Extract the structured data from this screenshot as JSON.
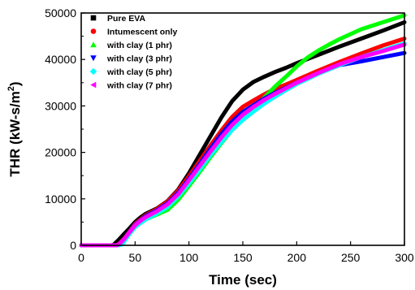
{
  "chart_data": {
    "type": "line",
    "title": "",
    "xlabel": "Time (sec)",
    "ylabel": "THR (kW-s/m²)",
    "ylabel_main": "THR (kW-s/m",
    "ylabel_sup": "2",
    "ylabel_end": ")",
    "xlim": [
      0,
      300
    ],
    "ylim": [
      0,
      50000
    ],
    "xticks": [
      0,
      50,
      100,
      150,
      200,
      250,
      300
    ],
    "yticks": [
      0,
      10000,
      20000,
      30000,
      40000,
      50000
    ],
    "grid": false,
    "legend_position": "top-left",
    "series": [
      {
        "name": "Pure EVA",
        "color": "#000000",
        "marker": "square",
        "x": [
          0,
          28,
          30,
          35,
          40,
          45,
          50,
          55,
          60,
          70,
          80,
          90,
          100,
          110,
          120,
          130,
          140,
          150,
          160,
          170,
          180,
          190,
          200,
          220,
          240,
          260,
          280,
          300
        ],
        "y": [
          0,
          0,
          100,
          1200,
          2500,
          3700,
          5000,
          6000,
          6800,
          7900,
          9500,
          12000,
          15500,
          19500,
          23500,
          27500,
          31000,
          33500,
          35200,
          36300,
          37300,
          38200,
          39200,
          41000,
          42800,
          44500,
          46200,
          48000
        ]
      },
      {
        "name": "Intumescent only",
        "color": "#ff0000",
        "marker": "circle",
        "x": [
          0,
          32,
          35,
          40,
          45,
          50,
          55,
          60,
          70,
          80,
          90,
          100,
          110,
          120,
          130,
          140,
          150,
          160,
          170,
          180,
          190,
          200,
          220,
          240,
          260,
          280,
          300
        ],
        "y": [
          0,
          0,
          300,
          1500,
          3000,
          4600,
          5600,
          6500,
          7800,
          9400,
          11800,
          14900,
          18200,
          21500,
          24700,
          27600,
          29800,
          31200,
          32500,
          33700,
          34600,
          35600,
          37600,
          39500,
          41300,
          43000,
          44500
        ]
      },
      {
        "name": "with clay (1 phr)",
        "color": "#00ff00",
        "marker": "triangle-up",
        "x": [
          0,
          34,
          37,
          40,
          45,
          50,
          55,
          60,
          70,
          80,
          90,
          100,
          110,
          120,
          130,
          140,
          150,
          160,
          170,
          180,
          190,
          200,
          210,
          220,
          230,
          240,
          260,
          280,
          300
        ],
        "y": [
          0,
          0,
          300,
          1300,
          2800,
          4100,
          4900,
          5600,
          6600,
          7600,
          9800,
          12800,
          15800,
          19000,
          22000,
          24800,
          27000,
          29400,
          31800,
          34200,
          36300,
          38500,
          40400,
          41900,
          43200,
          44400,
          46500,
          48000,
          49500
        ]
      },
      {
        "name": "with clay (3 phr)",
        "color": "#0000ff",
        "marker": "triangle-down",
        "x": [
          0,
          33,
          35,
          40,
          45,
          50,
          55,
          60,
          70,
          80,
          90,
          100,
          110,
          120,
          130,
          140,
          150,
          160,
          170,
          180,
          190,
          200,
          220,
          240,
          260,
          280,
          300
        ],
        "y": [
          0,
          0,
          200,
          1400,
          2900,
          4400,
          5400,
          6300,
          7500,
          9000,
          11300,
          14300,
          17500,
          20800,
          23900,
          26600,
          28700,
          30200,
          31600,
          32800,
          33900,
          35000,
          37000,
          38800,
          39600,
          40500,
          41400
        ]
      },
      {
        "name": "with clay (5 phr)",
        "color": "#00ffff",
        "marker": "diamond",
        "x": [
          0,
          35,
          38,
          40,
          45,
          50,
          55,
          60,
          70,
          80,
          90,
          100,
          110,
          120,
          130,
          140,
          150,
          160,
          170,
          180,
          190,
          200,
          220,
          240,
          260,
          280,
          300
        ],
        "y": [
          0,
          0,
          200,
          900,
          2500,
          3900,
          4800,
          5600,
          6800,
          8200,
          10500,
          13300,
          16300,
          19400,
          22200,
          24800,
          27000,
          28800,
          30500,
          32000,
          33400,
          34700,
          36900,
          38800,
          40500,
          42000,
          43500
        ]
      },
      {
        "name": "with clay (7 phr)",
        "color": "#ff00ff",
        "marker": "triangle-left",
        "x": [
          0,
          33,
          35,
          40,
          45,
          50,
          55,
          60,
          70,
          80,
          90,
          100,
          110,
          120,
          130,
          140,
          150,
          160,
          170,
          180,
          190,
          200,
          220,
          240,
          260,
          280,
          300
        ],
        "y": [
          0,
          0,
          200,
          1400,
          2900,
          4300,
          5300,
          6100,
          7300,
          8800,
          11000,
          14000,
          17100,
          20200,
          23200,
          25900,
          28100,
          29800,
          31300,
          32600,
          33800,
          35000,
          37100,
          39000,
          40500,
          41800,
          43200
        ]
      }
    ]
  }
}
